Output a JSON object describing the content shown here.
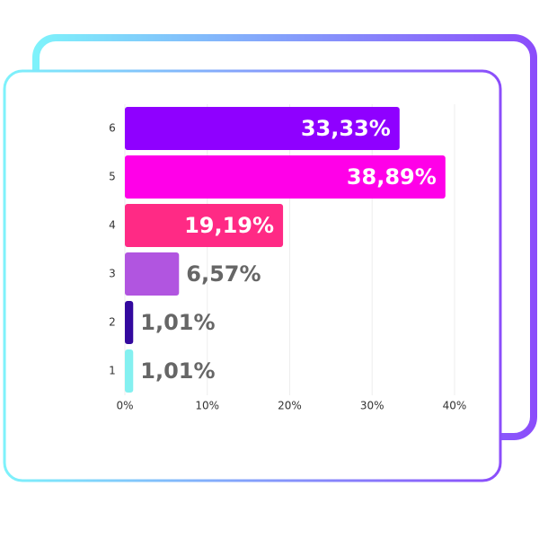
{
  "chart_data": {
    "type": "bar",
    "orientation": "horizontal",
    "categories": [
      "6",
      "5",
      "4",
      "3",
      "2",
      "1"
    ],
    "values": [
      33.33,
      38.89,
      19.19,
      6.57,
      1.01,
      1.01
    ],
    "value_labels": [
      "33,33%",
      "38,89%",
      "19,19%",
      "6,57%",
      "1,01%",
      "1,01%"
    ],
    "colors": [
      "#8f00ff",
      "#ff00e8",
      "#ff2a85",
      "#b155e0",
      "#33099e",
      "#84f0f0"
    ],
    "xlim": [
      0,
      40
    ],
    "xticks": [
      {
        "value": 0,
        "label": "0%"
      },
      {
        "value": 10,
        "label": "10%"
      },
      {
        "value": 20,
        "label": "20%"
      },
      {
        "value": 30,
        "label": "30%"
      },
      {
        "value": 40,
        "label": "40%"
      }
    ],
    "grid": true
  }
}
